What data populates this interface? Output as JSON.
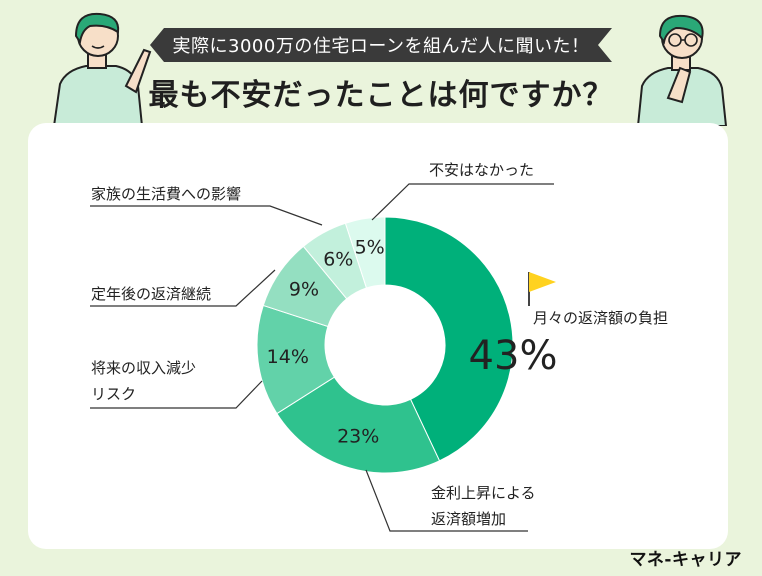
{
  "header": {
    "banner": "実際に3000万の住宅ローンを組んだ人に聞いた！",
    "headline": "最も不安だったことは何ですか？"
  },
  "brand": "マネ-キャリア",
  "colors": {
    "background": "#eaf4dc",
    "banner_bg": "#3a3a3a",
    "flag": "#ffd21f"
  },
  "chart_data": {
    "type": "pie",
    "style": "donut",
    "unit": "%",
    "categories": [
      "月々の返済額の負担",
      "金利上昇による返済額増加",
      "将来の収入減少リスク",
      "定年後の返済継続",
      "家族の生活費への影響",
      "不安はなかった"
    ],
    "values": [
      43,
      23,
      14,
      9,
      6,
      5
    ],
    "value_labels": [
      "43%",
      "23%",
      "14%",
      "9%",
      "6%",
      "5%"
    ],
    "label_lines": [
      [
        "月々の返済額の負担"
      ],
      [
        "金利上昇による",
        "返済額増加"
      ],
      [
        "将来の収入減少",
        "リスク"
      ],
      [
        "定年後の返済継続"
      ],
      [
        "家族の生活費への影響"
      ],
      [
        "不安はなかった"
      ]
    ],
    "colors": [
      "#00b07a",
      "#2fc28e",
      "#62d2a9",
      "#94dfc1",
      "#c2f0dc",
      "#dcfaee"
    ]
  }
}
